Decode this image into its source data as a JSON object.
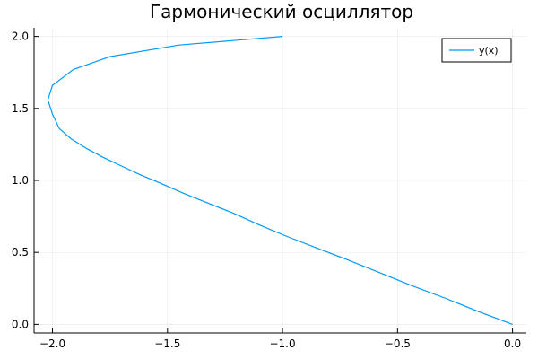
{
  "chart_data": {
    "type": "line",
    "title": "Гармонический осциллятор",
    "xlabel": "",
    "ylabel": "",
    "xlim": [
      -2.08,
      0.06
    ],
    "ylim": [
      -0.06,
      2.06
    ],
    "grid": true,
    "legend_position": "top-right",
    "xticks": [
      -2.0,
      -1.5,
      -1.0,
      -0.5,
      0.0
    ],
    "xtick_labels": [
      "−2.0",
      "−1.5",
      "−1.0",
      "−0.5",
      "0.0"
    ],
    "yticks": [
      0.0,
      0.5,
      1.0,
      1.5,
      2.0
    ],
    "ytick_labels": [
      "0.0",
      "0.5",
      "1.0",
      "1.5",
      "2.0"
    ],
    "series": [
      {
        "name": "y(x)",
        "color": "#009AFA",
        "x": [
          0.0,
          -0.15,
          -0.29,
          -0.44,
          -0.58,
          -0.72,
          -0.85,
          -0.98,
          -1.1,
          -1.21,
          -1.32,
          -1.43,
          -1.53,
          -1.62,
          -1.7,
          -1.78,
          -1.85,
          -1.92,
          -1.97,
          -2.0,
          -2.02,
          -2.0,
          -1.91,
          -1.75,
          -1.45,
          -1.0
        ],
        "y": [
          0.0,
          0.09,
          0.18,
          0.27,
          0.36,
          0.45,
          0.53,
          0.61,
          0.69,
          0.77,
          0.84,
          0.91,
          0.98,
          1.04,
          1.1,
          1.16,
          1.22,
          1.29,
          1.36,
          1.46,
          1.56,
          1.66,
          1.77,
          1.86,
          1.94,
          2.0
        ]
      }
    ]
  }
}
